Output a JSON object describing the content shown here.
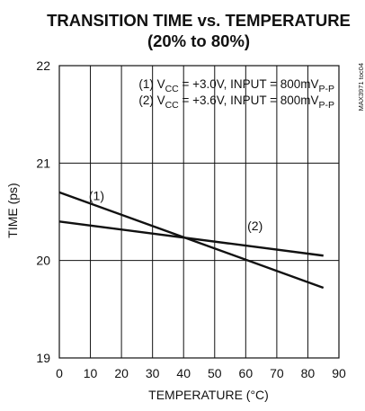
{
  "chart_data": {
    "type": "line",
    "title": "TRANSITION TIME vs. TEMPERATURE",
    "subtitle": "(20% to 80%)",
    "xlabel": "TEMPERATURE (°C)",
    "ylabel": "TIME (ps)",
    "xlim": [
      0,
      90
    ],
    "ylim": [
      19,
      22
    ],
    "xticks": [
      "0",
      "10",
      "20",
      "30",
      "40",
      "50",
      "60",
      "70",
      "80",
      "90"
    ],
    "yticks": [
      "19",
      "20",
      "21",
      "22"
    ],
    "grid": true,
    "legend": [
      {
        "id": "(1)",
        "pre": " V",
        "sub": "CC",
        "mid": " = +3.0V, INPUT = 800mV",
        "sub2": "P-P"
      },
      {
        "id": "(2)",
        "pre": " V",
        "sub": "CC",
        "mid": " = +3.6V, INPUT = 800mV",
        "sub2": "P-P"
      }
    ],
    "legend_position": "top-right",
    "annotation": "MAX3971 toc04",
    "series": [
      {
        "name": "(1)",
        "label_at": [
          12,
          20.62
        ],
        "x": [
          0,
          85
        ],
        "y": [
          20.7,
          19.72
        ]
      },
      {
        "name": "(2)",
        "label_at": [
          63,
          20.31
        ],
        "x": [
          0,
          85
        ],
        "y": [
          20.4,
          20.05
        ]
      }
    ]
  }
}
